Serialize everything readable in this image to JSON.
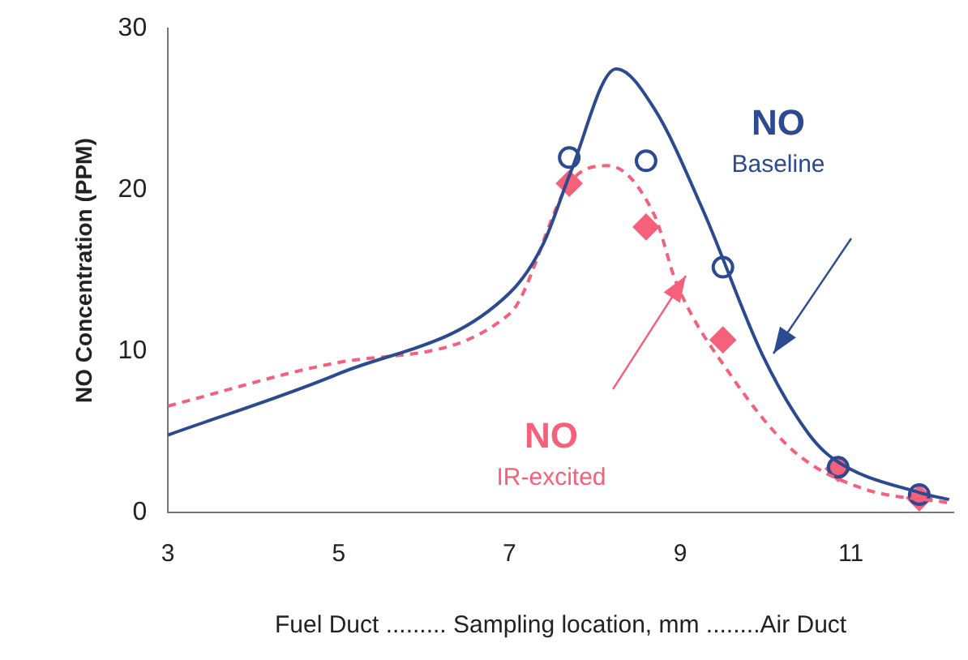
{
  "chart_data": {
    "type": "line",
    "xlabel": "Fuel Duct ......... Sampling location, mm ........Air Duct",
    "ylabel": "NO Concentration (PPM)",
    "xlim": [
      3,
      12.2
    ],
    "xticks": [
      3,
      5,
      7,
      9,
      11
    ],
    "ylim": [
      0,
      30
    ],
    "yticks": [
      0,
      10,
      20,
      30
    ],
    "grid": false,
    "legend": false,
    "series": [
      {
        "name": "NO",
        "color": "#2b4a8f",
        "line_style": "solid",
        "marker": "none",
        "x": [
          3,
          5,
          7,
          7.4,
          7.71,
          8.25,
          8.7,
          9.27,
          9.96,
          10.5,
          10.8,
          11.82,
          12.15
        ],
        "values": [
          4.8,
          8.6,
          13.6,
          16.7,
          21,
          27.5,
          25,
          18.7,
          9.8,
          4.9,
          3.3,
          1.2,
          0.8
        ]
      },
      {
        "name": "NO",
        "color": "#f5607a",
        "line_style": "dashed",
        "marker": "none",
        "x": [
          3,
          5,
          7,
          7.7,
          8.15,
          8.7,
          8.95,
          9.58,
          10.33,
          11.13,
          12.15
        ],
        "values": [
          6.6,
          9.3,
          12.3,
          20.4,
          21.5,
          18.4,
          14.3,
          8.6,
          3.8,
          1.5,
          0.6
        ]
      },
      {
        "type": "scatter",
        "color": "#2b4a8f",
        "marker": "circle",
        "x": [
          7.7,
          8.6,
          9.5,
          10.85,
          11.8
        ],
        "values": [
          22,
          21.8,
          15.2,
          2.8,
          1.1
        ]
      },
      {
        "type": "scatter",
        "color": "#f5607a",
        "marker": "diamond",
        "x": [
          7.7,
          8.6,
          9.5,
          10.85,
          11.8
        ],
        "values": [
          20.4,
          17.7,
          10.7,
          2.7,
          0.9
        ]
      }
    ],
    "annotations": [
      "Baseline",
      "IR-excited"
    ]
  }
}
